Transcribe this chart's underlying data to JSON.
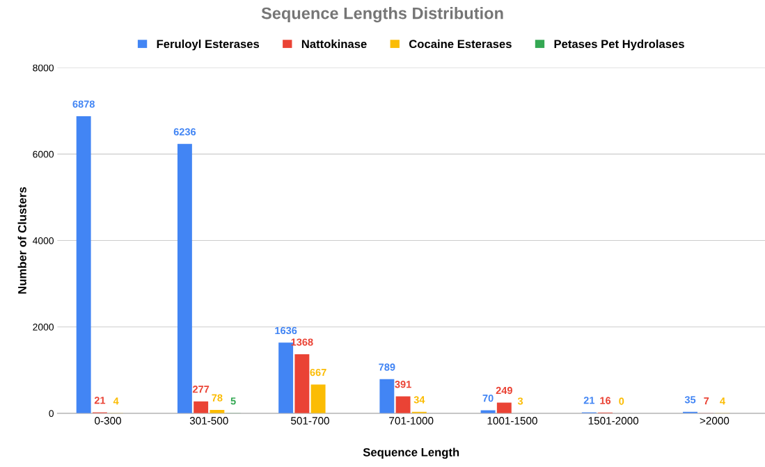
{
  "chart_data": {
    "type": "bar",
    "title": "Sequence Lengths Distribution",
    "xlabel": "Sequence Length",
    "ylabel": "Number of Clusters",
    "categories": [
      "0-300",
      "301-500",
      "501-700",
      "701-1000",
      "1001-1500",
      "1501-2000",
      ">2000"
    ],
    "series": [
      {
        "name": "Feruloyl Esterases",
        "color": "#4285f4",
        "values": [
          6878,
          6236,
          1636,
          789,
          70,
          21,
          35
        ]
      },
      {
        "name": "Nattokinase",
        "color": "#ea4335",
        "values": [
          21,
          277,
          1368,
          391,
          249,
          16,
          7
        ]
      },
      {
        "name": "Cocaine Esterases",
        "color": "#fbbc04",
        "values": [
          4,
          78,
          667,
          34,
          3,
          0,
          4
        ]
      },
      {
        "name": "Petases Pet Hydrolases",
        "color": "#34a853",
        "values": [
          null,
          5,
          null,
          null,
          null,
          null,
          null
        ]
      }
    ],
    "ylim": [
      0,
      8000
    ],
    "yticks": [
      0,
      2000,
      4000,
      6000,
      8000
    ],
    "grid": "y",
    "legend": "top",
    "data_labels": true
  }
}
